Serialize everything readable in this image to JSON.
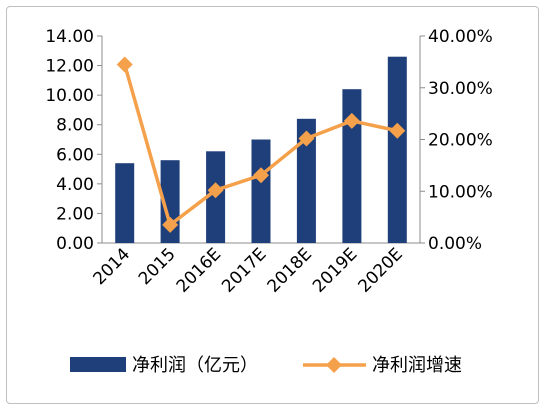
{
  "chart_data": {
    "type": "bar",
    "categories": [
      "2014",
      "2015",
      "2016E",
      "2017E",
      "2018E",
      "2019E",
      "2020E"
    ],
    "series": [
      {
        "name": "净利润（亿元）",
        "type": "bar",
        "axis": "left",
        "color": "#1f3f7a",
        "values": [
          5.4,
          5.6,
          6.2,
          7.0,
          8.4,
          10.4,
          12.6
        ]
      },
      {
        "name": "净利润增速",
        "type": "line",
        "axis": "right",
        "color": "#f5a04a",
        "marker": "diamond",
        "values": [
          34.5,
          3.5,
          10.2,
          13.1,
          20.2,
          23.6,
          21.7
        ]
      }
    ],
    "ylim_left": [
      0,
      14
    ],
    "ylim_right": [
      0,
      40
    ],
    "yticks_left": [
      "0.00",
      "2.00",
      "4.00",
      "6.00",
      "8.00",
      "10.00",
      "12.00",
      "14.00"
    ],
    "yticks_right": [
      "0.00%",
      "10.00%",
      "20.00%",
      "30.00%",
      "40.00%"
    ],
    "grid": false,
    "legend_position": "bottom"
  }
}
